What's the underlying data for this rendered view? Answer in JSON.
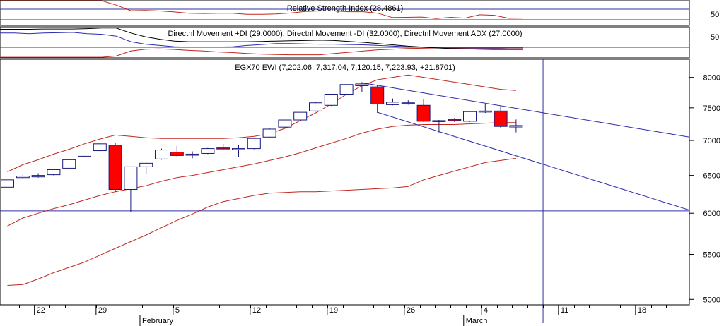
{
  "colors": {
    "background": "#ffffff",
    "up_candle_fill": "#ffffff",
    "down_candle_fill": "#ff0000",
    "candle_outline": "#1a1a80",
    "bands": "#c0281e",
    "trendlines": "#2b2bb0",
    "gridline": "#3030a0",
    "rsi_line": "#c0281e",
    "plus_di": "#2b2bb0",
    "minus_di": "#c0281e",
    "adx": "#000000"
  },
  "chart_data": [
    {
      "type": "line",
      "title": "Relative Strength Index (28.4861)",
      "y_tick_labels": [
        "50"
      ],
      "series": [
        {
          "values": [
            97,
            97,
            97,
            97,
            97,
            97,
            97,
            97,
            80,
            58,
            59,
            57,
            53,
            48,
            47,
            48,
            48,
            44,
            44,
            45,
            49,
            55,
            57,
            57,
            54,
            54,
            48,
            31,
            32,
            33,
            27,
            32,
            29,
            42,
            40,
            28,
            29
          ]
        }
      ]
    },
    {
      "type": "line",
      "title": "Directnl Movement +DI (29.0000), Directnl Movement -DI (32.0000), Directnl Movement ADX (27.0000)",
      "y_tick_labels": [
        "50"
      ],
      "series": [
        {
          "values": [
            80,
            80,
            78,
            80,
            81,
            82,
            78,
            76,
            70,
            52,
            44,
            40,
            36,
            34,
            34,
            35,
            36,
            40,
            43,
            46,
            46,
            45,
            44,
            44,
            43,
            42,
            40,
            38,
            36,
            34,
            32,
            31,
            30,
            30,
            30,
            29,
            29
          ]
        },
        {
          "values": [
            2,
            2,
            2,
            2,
            2,
            2,
            2,
            2,
            6,
            22,
            28,
            29,
            27,
            24,
            22,
            19,
            17,
            14,
            12,
            11,
            10,
            10,
            10,
            14,
            18,
            22,
            26,
            28,
            30,
            31,
            32,
            32,
            32,
            32,
            32,
            32,
            32
          ]
        },
        {
          "values": [
            92,
            92,
            92,
            93,
            93,
            93,
            94,
            96,
            96,
            80,
            68,
            60,
            54,
            52,
            52,
            52,
            52,
            52,
            53,
            54,
            55,
            56,
            57,
            56,
            53,
            50,
            46,
            42,
            38,
            35,
            32,
            30,
            29,
            28,
            27,
            27,
            27
          ]
        }
      ]
    },
    {
      "type": "candlestick",
      "title": "EGX70 EWI (7,202.06, 7,317.04, 7,120.15, 7,223.93, +21.8701)",
      "y_log_scale": true,
      "y_range": [
        4950,
        8300
      ],
      "y_ticks": [
        5000,
        5500,
        6000,
        6500,
        7000,
        7500,
        8000
      ],
      "x_tick_labels": [
        {
          "label": "22",
          "index": 1.75
        },
        {
          "label": "29",
          "index": 5.75
        },
        {
          "label": "5",
          "index": 10.75
        },
        {
          "label": "12",
          "index": 15.75
        },
        {
          "label": "19",
          "index": 20.75
        },
        {
          "label": "26",
          "index": 25.75
        },
        {
          "label": "4",
          "index": 30.75
        },
        {
          "label": "11",
          "index": 35.75
        },
        {
          "label": "18",
          "index": 40.75
        }
      ],
      "month_labels": [
        {
          "label": "February",
          "index": 8.6
        },
        {
          "label": "March",
          "index": 29.6
        }
      ],
      "candles": [
        {
          "o": 6340,
          "h": 6440,
          "l": 6340,
          "c": 6440
        },
        {
          "o": 6470,
          "h": 6510,
          "l": 6460,
          "c": 6490
        },
        {
          "o": 6480,
          "h": 6530,
          "l": 6470,
          "c": 6500
        },
        {
          "o": 6510,
          "h": 6580,
          "l": 6500,
          "c": 6580
        },
        {
          "o": 6600,
          "h": 6720,
          "l": 6600,
          "c": 6720
        },
        {
          "o": 6770,
          "h": 6830,
          "l": 6760,
          "c": 6830
        },
        {
          "o": 6850,
          "h": 6960,
          "l": 6840,
          "c": 6950
        },
        {
          "o": 6930,
          "h": 6960,
          "l": 6280,
          "c": 6310
        },
        {
          "o": 6310,
          "h": 6620,
          "l": 6020,
          "c": 6620
        },
        {
          "o": 6620,
          "h": 6680,
          "l": 6520,
          "c": 6670
        },
        {
          "o": 6730,
          "h": 6880,
          "l": 6720,
          "c": 6860
        },
        {
          "o": 6830,
          "h": 6920,
          "l": 6760,
          "c": 6780
        },
        {
          "o": 6790,
          "h": 6840,
          "l": 6740,
          "c": 6800
        },
        {
          "o": 6810,
          "h": 6890,
          "l": 6800,
          "c": 6880
        },
        {
          "o": 6890,
          "h": 6950,
          "l": 6860,
          "c": 6880
        },
        {
          "o": 6870,
          "h": 6930,
          "l": 6760,
          "c": 6880
        },
        {
          "o": 6880,
          "h": 7030,
          "l": 6870,
          "c": 7030
        },
        {
          "o": 7050,
          "h": 7180,
          "l": 7040,
          "c": 7170
        },
        {
          "o": 7200,
          "h": 7310,
          "l": 7180,
          "c": 7310
        },
        {
          "o": 7310,
          "h": 7430,
          "l": 7300,
          "c": 7430
        },
        {
          "o": 7450,
          "h": 7590,
          "l": 7440,
          "c": 7580
        },
        {
          "o": 7540,
          "h": 7720,
          "l": 7530,
          "c": 7720
        },
        {
          "o": 7720,
          "h": 7880,
          "l": 7710,
          "c": 7880
        },
        {
          "o": 7860,
          "h": 7920,
          "l": 7760,
          "c": 7890
        },
        {
          "o": 7840,
          "h": 7870,
          "l": 7420,
          "c": 7560
        },
        {
          "o": 7550,
          "h": 7650,
          "l": 7540,
          "c": 7590
        },
        {
          "o": 7580,
          "h": 7620,
          "l": 7550,
          "c": 7560
        },
        {
          "o": 7540,
          "h": 7640,
          "l": 7280,
          "c": 7290
        },
        {
          "o": 7290,
          "h": 7310,
          "l": 7120,
          "c": 7300
        },
        {
          "o": 7320,
          "h": 7340,
          "l": 7280,
          "c": 7300
        },
        {
          "o": 7290,
          "h": 7440,
          "l": 7280,
          "c": 7440
        },
        {
          "o": 7440,
          "h": 7560,
          "l": 7420,
          "c": 7450
        },
        {
          "o": 7450,
          "h": 7530,
          "l": 7190,
          "c": 7210
        },
        {
          "o": 7202.06,
          "h": 7317.04,
          "l": 7120.15,
          "c": 7223.93
        }
      ],
      "upper_band": [
        6550,
        6650,
        6720,
        6800,
        6870,
        6950,
        7020,
        7080,
        7060,
        7040,
        7030,
        7030,
        7030,
        7030,
        7030,
        7040,
        7060,
        7100,
        7180,
        7300,
        7420,
        7560,
        7720,
        7860,
        7960,
        8000,
        8040,
        8000,
        7960,
        7920,
        7880,
        7840,
        7800,
        7780
      ],
      "middle_band": [
        5840,
        5940,
        6000,
        6060,
        6110,
        6170,
        6230,
        6280,
        6320,
        6360,
        6420,
        6470,
        6500,
        6540,
        6580,
        6620,
        6660,
        6710,
        6760,
        6820,
        6890,
        6960,
        7030,
        7110,
        7170,
        7210,
        7230,
        7240,
        7240,
        7240,
        7250,
        7260,
        7270,
        7270
      ],
      "lower_band": [
        5150,
        5160,
        5220,
        5290,
        5350,
        5410,
        5490,
        5570,
        5650,
        5730,
        5820,
        5910,
        5990,
        6080,
        6150,
        6190,
        6230,
        6260,
        6270,
        6280,
        6280,
        6290,
        6300,
        6310,
        6320,
        6330,
        6350,
        6440,
        6500,
        6560,
        6620,
        6680,
        6710,
        6740
      ],
      "trendlines": [
        {
          "from": {
            "i": 23,
            "v": 7910
          },
          "to": {
            "i": 45.5,
            "v": 7050
          }
        },
        {
          "from": {
            "i": 24,
            "v": 7430
          },
          "to": {
            "i": 45.5,
            "v": 6040
          }
        }
      ],
      "horizontal_line": 6030,
      "vertical_line_index": 34.75
    }
  ]
}
